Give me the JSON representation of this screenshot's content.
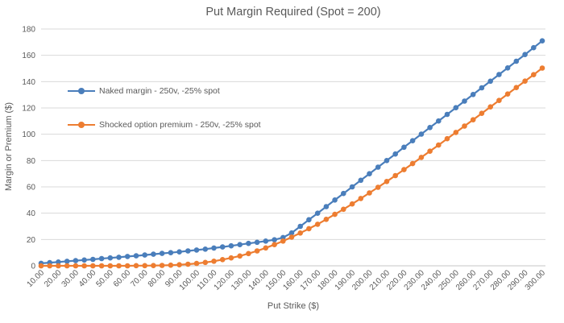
{
  "colors": {
    "background": "#FFFFFF",
    "grid": "#D9D9D9",
    "axis_line": "#C6C6C6",
    "text": "#595959",
    "series_blue": "#4A7EBB",
    "series_orange": "#ED7D31"
  },
  "chart_data": {
    "type": "line",
    "title": "Put Margin Required (Spot = 200)",
    "xlabel": "Put Strike ($)",
    "ylabel": "Margin or Premium ($)",
    "ylim": [
      0,
      180
    ],
    "y_ticks": [
      0,
      20,
      40,
      60,
      80,
      100,
      120,
      140,
      160,
      180
    ],
    "x_tick_labels": [
      "10.00",
      "20.00",
      "30.00",
      "40.00",
      "50.00",
      "60.00",
      "70.00",
      "80.00",
      "90.00",
      "100.00",
      "110.00",
      "120.00",
      "130.00",
      "140.00",
      "150.00",
      "160.00",
      "170.00",
      "180.00",
      "190.00",
      "200.00",
      "210.00",
      "220.00",
      "230.00",
      "240.00",
      "250.00",
      "260.00",
      "270.00",
      "280.00",
      "290.00",
      "300.00"
    ],
    "grid": "horizontal",
    "legend_position": "upper-left-inside",
    "marker": "circle",
    "x": [
      10,
      15,
      20,
      25,
      30,
      35,
      40,
      45,
      50,
      55,
      60,
      65,
      70,
      75,
      80,
      85,
      90,
      95,
      100,
      105,
      110,
      115,
      120,
      125,
      130,
      135,
      140,
      145,
      150,
      155,
      160,
      165,
      170,
      175,
      180,
      185,
      190,
      195,
      200,
      205,
      210,
      215,
      220,
      225,
      230,
      235,
      240,
      245,
      250,
      255,
      260,
      265,
      270,
      275,
      280,
      285,
      290,
      295,
      300
    ],
    "series": [
      {
        "name": "Naked margin - 250v, -25% spot",
        "color": "#4A7EBB",
        "values": [
          1.9,
          2.4,
          2.9,
          3.4,
          3.9,
          4.4,
          4.9,
          5.5,
          6.0,
          6.5,
          7.1,
          7.6,
          8.2,
          8.8,
          9.4,
          10.0,
          10.6,
          11.3,
          12.0,
          12.7,
          13.5,
          14.3,
          15.2,
          16.1,
          17.0,
          17.9,
          18.8,
          19.8,
          21.5,
          25.0,
          30.0,
          35.0,
          40.0,
          45.0,
          50.0,
          55.0,
          60.0,
          65.0,
          70.0,
          75.0,
          80.0,
          85.0,
          90.1,
          95.1,
          100.1,
          105.1,
          110.1,
          115.1,
          120.2,
          125.2,
          130.2,
          135.3,
          140.3,
          145.4,
          150.4,
          155.5,
          160.6,
          165.8,
          171.0
        ]
      },
      {
        "name": "Shocked option premium - 250v, -25% spot",
        "color": "#ED7D31",
        "values": [
          0.0,
          0.0,
          0.0,
          0.0,
          0.0,
          0.0,
          0.0,
          0.0,
          0.0,
          0.0,
          0.0,
          0.1,
          0.1,
          0.2,
          0.3,
          0.5,
          0.8,
          1.2,
          1.8,
          2.6,
          3.5,
          4.7,
          6.0,
          7.5,
          9.3,
          11.3,
          13.6,
          16.1,
          18.8,
          21.8,
          24.9,
          28.2,
          31.6,
          35.3,
          39.1,
          43.0,
          47.0,
          51.2,
          55.4,
          59.7,
          64.1,
          68.6,
          73.1,
          77.7,
          82.4,
          87.1,
          91.8,
          96.6,
          101.4,
          106.2,
          111.0,
          115.9,
          120.8,
          125.7,
          130.6,
          135.5,
          140.4,
          145.3,
          150.3
        ]
      }
    ]
  }
}
